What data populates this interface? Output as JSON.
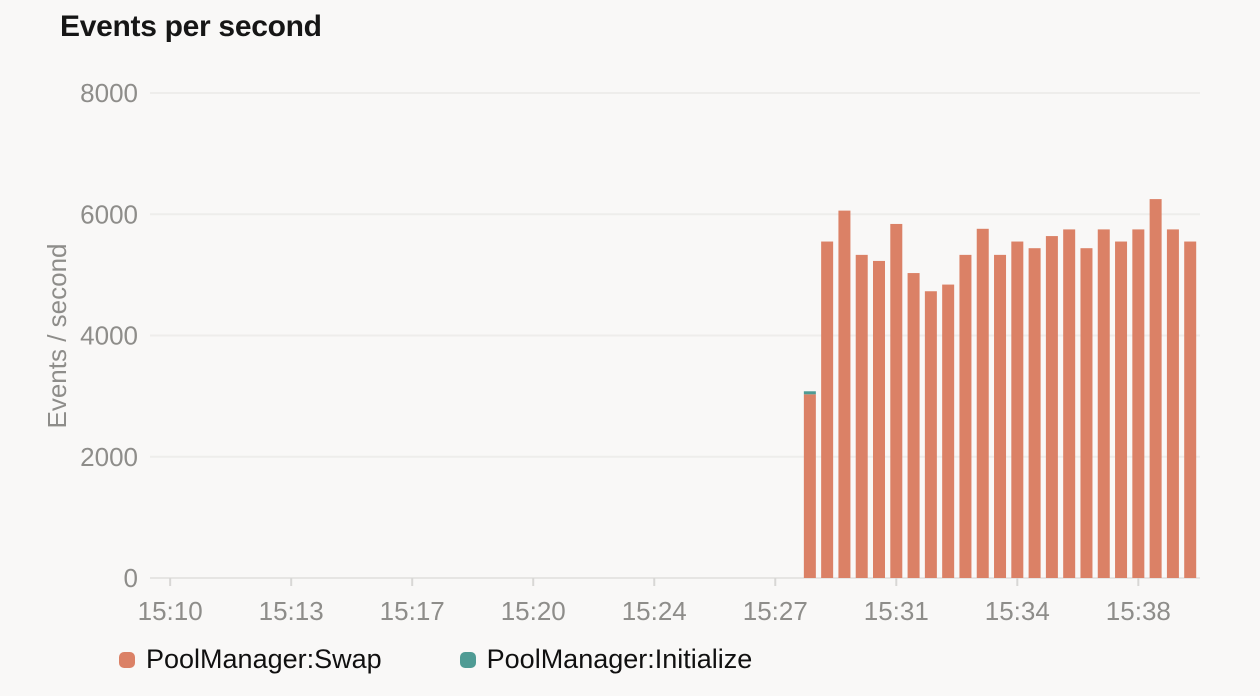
{
  "chart_data": {
    "type": "bar",
    "stacked": true,
    "title": "Events per second",
    "ylabel": "Events / second",
    "ylim": [
      0,
      8000
    ],
    "yticks": [
      0,
      2000,
      4000,
      6000,
      8000
    ],
    "grid": true,
    "legend_position": "bottom-left",
    "x_axis": {
      "min": "15:09:25",
      "max": "15:39:47",
      "ticks": [
        {
          "time": "15:10:00",
          "label": "15:10"
        },
        {
          "time": "15:13:30",
          "label": "15:13"
        },
        {
          "time": "15:17:00",
          "label": "15:17"
        },
        {
          "time": "15:20:30",
          "label": "15:20"
        },
        {
          "time": "15:24:00",
          "label": "15:24"
        },
        {
          "time": "15:27:30",
          "label": "15:27"
        },
        {
          "time": "15:31:00",
          "label": "15:31"
        },
        {
          "time": "15:34:30",
          "label": "15:34"
        },
        {
          "time": "15:38:00",
          "label": "15:38"
        }
      ]
    },
    "bar_width_seconds": 30,
    "x": [
      "15:28:30",
      "15:29:00",
      "15:29:30",
      "15:30:00",
      "15:30:30",
      "15:31:00",
      "15:31:30",
      "15:32:00",
      "15:32:30",
      "15:33:00",
      "15:33:30",
      "15:34:00",
      "15:34:30",
      "15:35:00",
      "15:35:30",
      "15:36:00",
      "15:36:30",
      "15:37:00",
      "15:37:30",
      "15:38:00",
      "15:38:30",
      "15:39:00",
      "15:39:30"
    ],
    "series": [
      {
        "name": "PoolManager:Swap",
        "color": "#db8166",
        "values": [
          3030,
          5550,
          6060,
          5330,
          5230,
          5840,
          5030,
          4730,
          4840,
          5330,
          5760,
          5330,
          5550,
          5440,
          5640,
          5750,
          5440,
          5750,
          5550,
          5750,
          6250,
          5750,
          5550
        ]
      },
      {
        "name": "PoolManager:Initialize",
        "color": "#4f9b94",
        "values": [
          50,
          0,
          0,
          0,
          0,
          0,
          0,
          0,
          0,
          0,
          0,
          0,
          0,
          0,
          0,
          0,
          0,
          0,
          0,
          0,
          0,
          0,
          0
        ]
      }
    ],
    "colors": {
      "background": "#f9f8f7",
      "gridline": "#eeedeb",
      "axis_line": "#e6e5e3",
      "tick_mark": "#d8d7d5",
      "tick_text": "#8e8d8a",
      "title_text": "#161616"
    }
  }
}
